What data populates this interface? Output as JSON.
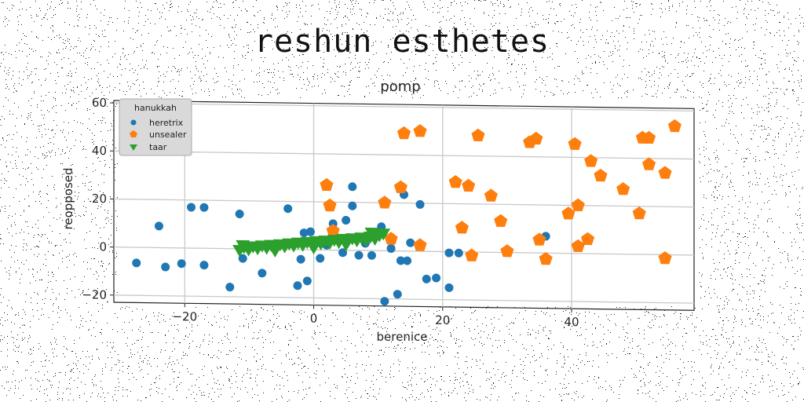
{
  "figure": {
    "suptitle": "reshun esthetes"
  },
  "chart_data": {
    "type": "scatter",
    "title": "pomp",
    "xlabel": "berenice",
    "ylabel": "reopposed",
    "xlim": [
      -31,
      59
    ],
    "ylim": [
      -23,
      61
    ],
    "xticks": [
      -20,
      0,
      20,
      40
    ],
    "yticks": [
      -20,
      0,
      20,
      40,
      60
    ],
    "grid": true,
    "legend": {
      "title": "hanukkah",
      "placement": "top-left"
    },
    "series": [
      {
        "name": "heretrix",
        "marker": "circle",
        "color": "#1f77b4",
        "points": [
          [
            -27.5,
            -6.5
          ],
          [
            -24,
            9
          ],
          [
            -23,
            -8
          ],
          [
            -20.5,
            -6.5
          ],
          [
            -19,
            17
          ],
          [
            -17,
            17
          ],
          [
            -17,
            -7
          ],
          [
            -13,
            -16
          ],
          [
            -11.5,
            14.5
          ],
          [
            -11,
            -4
          ],
          [
            -8,
            -10
          ],
          [
            -4,
            17
          ],
          [
            -2.5,
            -15
          ],
          [
            -2,
            -4
          ],
          [
            -1.5,
            7
          ],
          [
            -1,
            -13
          ],
          [
            -0.5,
            7.5
          ],
          [
            1,
            -3.5
          ],
          [
            2,
            2
          ],
          [
            3,
            11
          ],
          [
            4.5,
            -1
          ],
          [
            5,
            12.5
          ],
          [
            6,
            18.5
          ],
          [
            6,
            26.5
          ],
          [
            7,
            -2
          ],
          [
            8,
            3
          ],
          [
            9,
            -2
          ],
          [
            10.5,
            10
          ],
          [
            11,
            -21
          ],
          [
            12,
            1
          ],
          [
            13,
            -18
          ],
          [
            13.5,
            -4
          ],
          [
            14,
            23.5
          ],
          [
            14.5,
            -4
          ],
          [
            15,
            3.5
          ],
          [
            16.5,
            19.5
          ],
          [
            17.5,
            -11.5
          ],
          [
            19,
            -11
          ],
          [
            21,
            -15
          ],
          [
            21,
            -0.5
          ],
          [
            22.5,
            -0.5
          ],
          [
            36,
            7
          ]
        ]
      },
      {
        "name": "unsealer",
        "marker": "pentagon",
        "color": "#ff7f0e",
        "points": [
          [
            2,
            27
          ],
          [
            2.5,
            18.5
          ],
          [
            3,
            8
          ],
          [
            11,
            20
          ],
          [
            12,
            5
          ],
          [
            13.5,
            26.5
          ],
          [
            14,
            49
          ],
          [
            16.5,
            50
          ],
          [
            16.5,
            2.5
          ],
          [
            22,
            29
          ],
          [
            23,
            10
          ],
          [
            24,
            27.5
          ],
          [
            24.5,
            -1.5
          ],
          [
            25.5,
            48.5
          ],
          [
            27.5,
            23.5
          ],
          [
            29,
            13
          ],
          [
            30,
            0.5
          ],
          [
            33.5,
            46
          ],
          [
            34.5,
            47.5
          ],
          [
            35,
            5.5
          ],
          [
            36,
            -2.5
          ],
          [
            39.5,
            16.5
          ],
          [
            40.5,
            45.5
          ],
          [
            41,
            3
          ],
          [
            41,
            20
          ],
          [
            42.5,
            6
          ],
          [
            43,
            38.5
          ],
          [
            44.5,
            32.5
          ],
          [
            48,
            27
          ],
          [
            50.5,
            17
          ],
          [
            51,
            48.5
          ],
          [
            52,
            48.5
          ],
          [
            52,
            37.5
          ],
          [
            54.5,
            34
          ],
          [
            54.5,
            -1.5
          ],
          [
            56,
            53.5
          ]
        ]
      },
      {
        "name": "taar",
        "marker": "triangle-down",
        "color": "#2ca02c",
        "points": [
          [
            -11.5,
            -0.5
          ],
          [
            -10.8,
            0.8
          ],
          [
            -10.1,
            -0.2
          ],
          [
            -9.4,
            1.1
          ],
          [
            -8.7,
            0.3
          ],
          [
            -8,
            1.5
          ],
          [
            -7.3,
            0.6
          ],
          [
            -6.6,
            1.8
          ],
          [
            -5.9,
            1
          ],
          [
            -5.2,
            2.1
          ],
          [
            -4.5,
            1.3
          ],
          [
            -3.8,
            2.5
          ],
          [
            -3.1,
            1.7
          ],
          [
            -2.4,
            2.9
          ],
          [
            -1.7,
            2
          ],
          [
            -1,
            3.2
          ],
          [
            -0.3,
            2.4
          ],
          [
            0.4,
            3.6
          ],
          [
            1.1,
            2.7
          ],
          [
            1.8,
            3.9
          ],
          [
            2.5,
            3.1
          ],
          [
            3.2,
            4.3
          ],
          [
            3.9,
            3.4
          ],
          [
            4.6,
            4.7
          ],
          [
            5.3,
            3.8
          ],
          [
            6,
            5
          ],
          [
            6.7,
            4.2
          ],
          [
            7.4,
            5.4
          ],
          [
            8.1,
            4.5
          ],
          [
            8.8,
            5.8
          ],
          [
            9.5,
            5
          ],
          [
            10.2,
            6.5
          ],
          [
            10.8,
            7.2
          ],
          [
            -11,
            1.5
          ],
          [
            -6,
            -0.5
          ],
          [
            0,
            1
          ],
          [
            5,
            2.5
          ],
          [
            9,
            7.5
          ]
        ]
      }
    ]
  }
}
